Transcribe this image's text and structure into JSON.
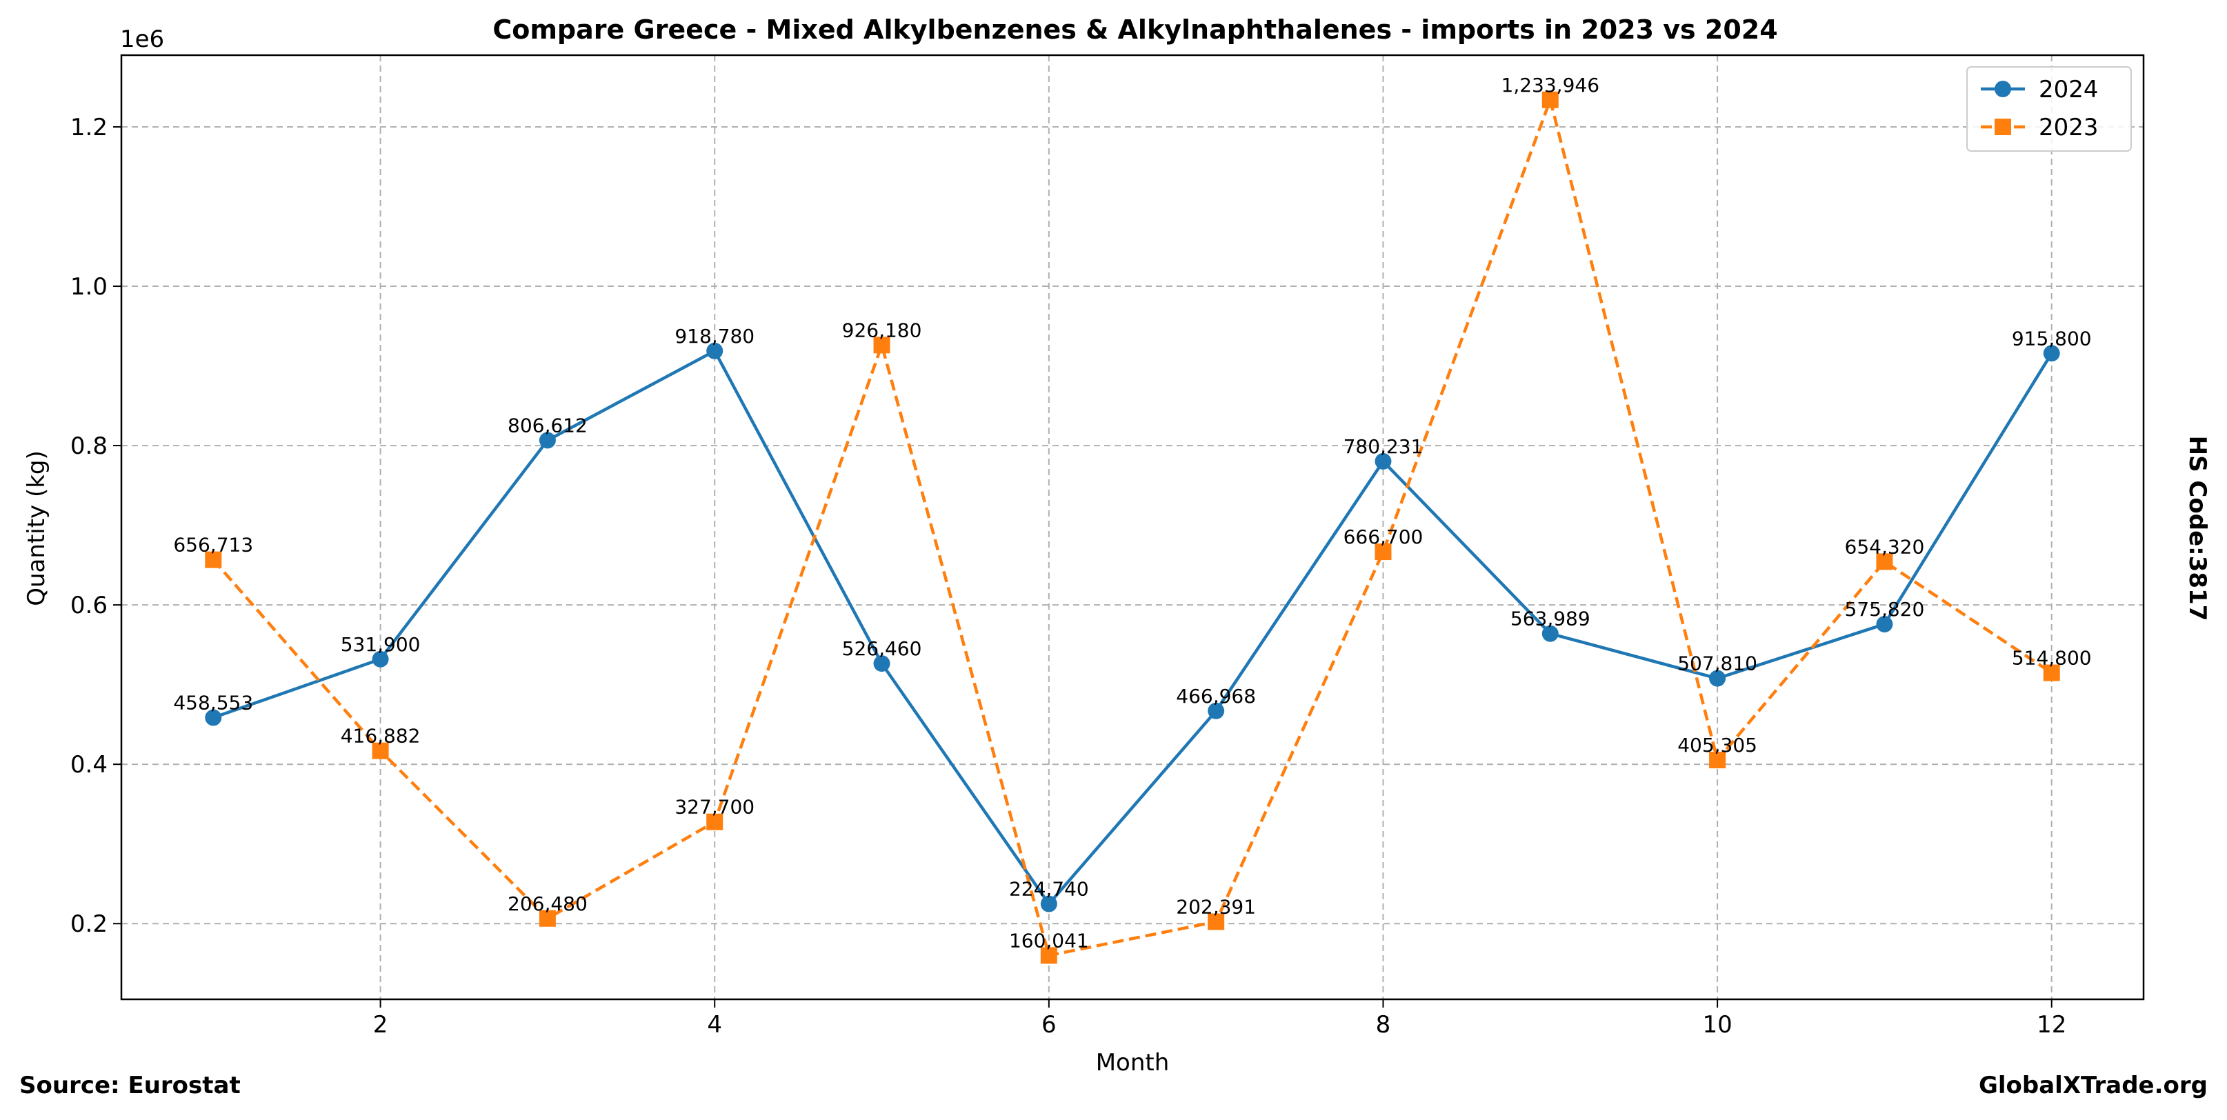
{
  "chart_data": {
    "type": "line",
    "title": "Compare Greece - Mixed Alkylbenzenes & Alkylnaphthalenes - imports in 2023 vs 2024",
    "xlabel": "Month",
    "ylabel": "Quantity (kg)",
    "y_offset_label": "1e6",
    "x": [
      1,
      2,
      3,
      4,
      5,
      6,
      7,
      8,
      9,
      10,
      11,
      12
    ],
    "xlim": [
      0.45,
      12.55
    ],
    "ylim": [
      105000,
      1290000
    ],
    "x_ticks": [
      2,
      4,
      6,
      8,
      10,
      12
    ],
    "y_ticks": [
      0.2,
      0.4,
      0.6,
      0.8,
      1.0,
      1.2
    ],
    "grid": true,
    "legend_position": "top-right",
    "series": [
      {
        "name": "2024",
        "values": [
          458553,
          531900,
          806612,
          918780,
          526460,
          224740,
          466968,
          780231,
          563989,
          507810,
          575820,
          915800
        ],
        "labels": [
          "458,553",
          "531,900",
          "806,612",
          "918,780",
          "526,460",
          "224,740",
          "466,968",
          "780,231",
          "563,989",
          "507,810",
          "575,820",
          "915,800"
        ],
        "color": "#1f77b4",
        "marker": "circle",
        "linestyle": "solid"
      },
      {
        "name": "2023",
        "values": [
          656713,
          416882,
          206480,
          327700,
          926180,
          160041,
          202391,
          666700,
          1233946,
          405305,
          654320,
          514800
        ],
        "labels": [
          "656,713",
          "416,882",
          "206,480",
          "327,700",
          "926,180",
          "160,041",
          "202,391",
          "666,700",
          "1,233,946",
          "405,305",
          "654,320",
          "514,800"
        ],
        "color": "#ff7f0e",
        "marker": "square",
        "linestyle": "dashed"
      }
    ]
  },
  "footer": {
    "source": "Source: Eurostat",
    "brand": "GlobalXTrade.org",
    "hs_code": "HS Code:3817"
  }
}
